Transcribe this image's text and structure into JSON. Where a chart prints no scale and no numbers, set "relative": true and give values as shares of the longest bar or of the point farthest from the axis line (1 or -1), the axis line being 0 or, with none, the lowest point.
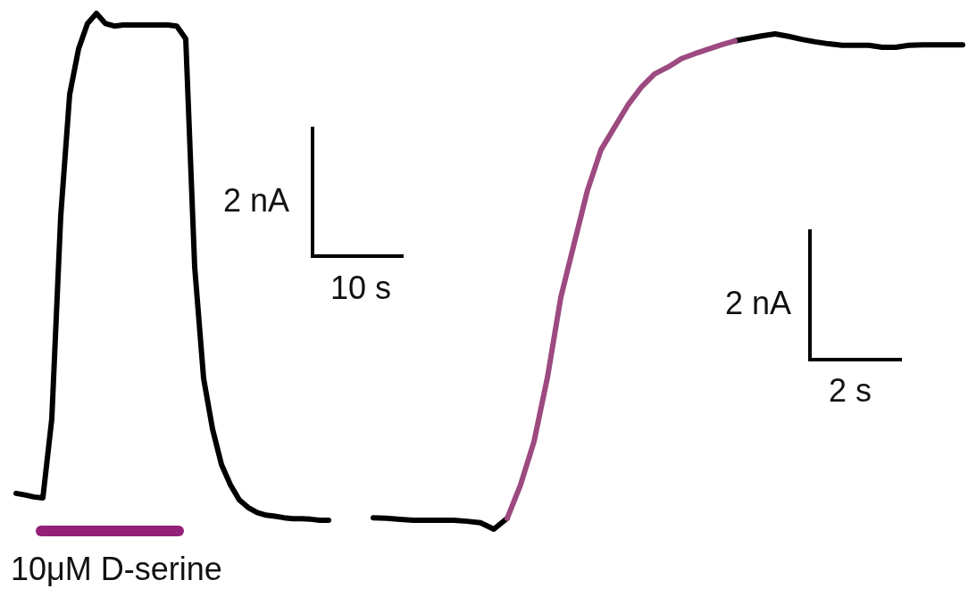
{
  "chart_data": [
    {
      "type": "line",
      "relative": true,
      "categories": [
        null,
        null,
        null,
        null,
        null,
        null,
        null,
        null,
        null,
        null,
        null,
        null,
        null,
        null,
        null,
        null,
        null,
        null,
        null,
        null,
        null,
        null,
        null,
        null,
        null,
        null,
        null,
        null,
        null,
        null,
        null,
        null,
        null,
        null,
        null,
        null
      ],
      "series": [
        {
          "color": "#000000",
          "values": [
            0.053,
            0.05,
            0.046,
            0.044,
            0.2,
            0.6,
            0.84,
            0.93,
            0.98,
            1.0,
            0.98,
            0.975,
            0.977,
            0.977,
            0.977,
            0.977,
            0.977,
            0.977,
            0.975,
            0.95,
            0.5,
            0.28,
            0.18,
            0.11,
            0.07,
            0.04,
            0.025,
            0.015,
            0.01,
            0.008,
            0.005,
            0.003,
            0.003,
            0.002,
            0.0,
            0.0
          ]
        }
      ],
      "annotations": [
        "2 nA",
        "10 s",
        "10μM D-serine"
      ]
    },
    {
      "type": "line",
      "relative": true,
      "categories": [
        null,
        null,
        null,
        null,
        null,
        null,
        null,
        null,
        null,
        null,
        null,
        null,
        null,
        null,
        null,
        null,
        null,
        null,
        null,
        null,
        null,
        null,
        null,
        null,
        null,
        null,
        null,
        null,
        null,
        null,
        null,
        null,
        null,
        null,
        null,
        null,
        null,
        null,
        null,
        null,
        null,
        null,
        null,
        null,
        null
      ],
      "series": [
        {
          "color": "#000000",
          "values": [
            0.023,
            0.022,
            0.02,
            0.018,
            0.018,
            0.018,
            0.018,
            0.016,
            0.013,
            0.0,
            0.022,
            null,
            null,
            null,
            null,
            null,
            null,
            null,
            null,
            null,
            null,
            null,
            null,
            null,
            null,
            null,
            null,
            0.986,
            0.991,
            0.996,
            1.0,
            0.995,
            0.989,
            0.984,
            0.98,
            0.977,
            0.977,
            0.977,
            0.973,
            0.973,
            0.977,
            0.978,
            0.978,
            0.978,
            0.978
          ]
        },
        {
          "color": "#9c4a80",
          "values": [
            null,
            null,
            null,
            null,
            null,
            null,
            null,
            null,
            null,
            null,
            0.022,
            0.09,
            0.177,
            0.306,
            0.468,
            0.577,
            0.685,
            0.766,
            0.811,
            0.856,
            0.892,
            0.919,
            0.933,
            0.95,
            0.96,
            0.969,
            0.978,
            0.986,
            null,
            null,
            null,
            null,
            null,
            null,
            null,
            null,
            null,
            null,
            null,
            null,
            null,
            null,
            null,
            null,
            null
          ]
        }
      ],
      "annotations": [
        "2 nA",
        "2 s"
      ]
    }
  ]
}
